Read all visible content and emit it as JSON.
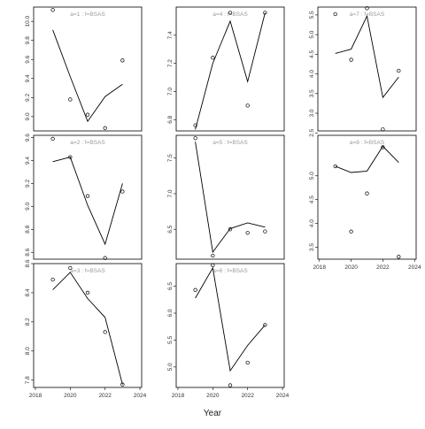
{
  "chart_data": {
    "type": "line",
    "layout": "3x3 small multiples, panels ordered column-wise",
    "xlabel": "Year",
    "ylabel": "",
    "x_ticks": [
      2018,
      2020,
      2022,
      2024
    ],
    "xlim": [
      2017.9,
      2024.1
    ],
    "grid": false,
    "legend": "none",
    "series_style": {
      "line": "#000000",
      "points": "open circles"
    },
    "panels": [
      {
        "label": "a=1  :  f=BSAS",
        "x": [
          2019,
          2020,
          2021,
          2022,
          2023
        ],
        "observed": [
          10.12,
          9.18,
          9.02,
          8.88,
          9.59
        ],
        "fitted": [
          9.91,
          9.42,
          8.95,
          9.21,
          9.34
        ],
        "ylim": [
          8.85,
          10.15
        ],
        "y_ticks": [
          9.0,
          9.2,
          9.4,
          9.6,
          9.8,
          10.0
        ],
        "tick_decimals": 1
      },
      {
        "label": "a=2  :  f=BSAS",
        "x": [
          2019,
          2020,
          2021,
          2022,
          2023
        ],
        "observed": [
          9.59,
          9.43,
          9.09,
          8.55,
          9.13
        ],
        "fitted": [
          9.39,
          9.43,
          9.01,
          8.67,
          9.2
        ],
        "ylim": [
          8.54,
          9.62
        ],
        "y_ticks": [
          8.6,
          8.8,
          9.0,
          9.2,
          9.4,
          9.6
        ],
        "tick_decimals": 1
      },
      {
        "label": "a=3  :  f=BSAS",
        "x": [
          2019,
          2020,
          2021,
          2022,
          2023
        ],
        "observed": [
          8.49,
          8.57,
          8.4,
          8.13,
          7.77
        ],
        "fitted": [
          8.42,
          8.54,
          8.36,
          8.23,
          7.77
        ],
        "ylim": [
          7.75,
          8.6
        ],
        "y_ticks": [
          7.8,
          8.0,
          8.2,
          8.4,
          8.6
        ],
        "tick_decimals": 1
      },
      {
        "label": "a=4  :  f=BSAS",
        "x": [
          2019,
          2020,
          2021,
          2022,
          2023
        ],
        "observed": [
          6.76,
          7.24,
          7.56,
          6.9,
          7.56
        ],
        "fitted": [
          6.73,
          7.2,
          7.5,
          7.07,
          7.56
        ],
        "ylim": [
          6.72,
          7.6
        ],
        "y_ticks": [
          6.8,
          7.0,
          7.2,
          7.4
        ],
        "tick_decimals": 1
      },
      {
        "label": "a=5  :  f=BSAS",
        "x": [
          2019,
          2020,
          2021,
          2022,
          2023
        ],
        "observed": [
          7.78,
          6.13,
          6.5,
          6.45,
          6.47
        ],
        "fitted": [
          7.73,
          6.18,
          6.51,
          6.59,
          6.53
        ],
        "ylim": [
          6.08,
          7.82
        ],
        "y_ticks": [
          6.5,
          7.0,
          7.5
        ],
        "tick_decimals": 1
      },
      {
        "label": "a=6  :  f=BSAS",
        "x": [
          2019,
          2020,
          2021,
          2022,
          2023
        ],
        "observed": [
          6.43,
          6.89,
          4.66,
          5.08,
          5.78
        ],
        "fitted": [
          6.28,
          6.84,
          4.93,
          5.4,
          5.78
        ],
        "ylim": [
          4.62,
          6.92
        ],
        "y_ticks": [
          5.0,
          5.5,
          6.0,
          6.5
        ],
        "tick_decimals": 1
      },
      {
        "label": "a=7  :  f=BSAS",
        "x": [
          2019,
          2020,
          2021,
          2022,
          2023
        ],
        "observed": [
          5.52,
          4.36,
          5.67,
          2.59,
          4.08
        ],
        "fitted": [
          4.52,
          4.63,
          5.47,
          3.4,
          3.92
        ],
        "ylim": [
          2.55,
          5.7
        ],
        "y_ticks": [
          2.5,
          3.0,
          3.5,
          4.0,
          4.5,
          5.0,
          5.5
        ],
        "tick_decimals": 1
      },
      {
        "label": "a=8  :  f=BSAS",
        "x": [
          2019,
          2020,
          2021,
          2022,
          2023
        ],
        "observed": [
          5.2,
          3.83,
          4.63,
          5.6,
          3.3
        ],
        "fitted": [
          5.2,
          5.07,
          5.1,
          5.62,
          5.28
        ],
        "ylim": [
          3.25,
          5.85
        ],
        "y_ticks": [
          3.5,
          4.0,
          4.5,
          5.0
        ],
        "tick_decimals": 1
      }
    ]
  }
}
